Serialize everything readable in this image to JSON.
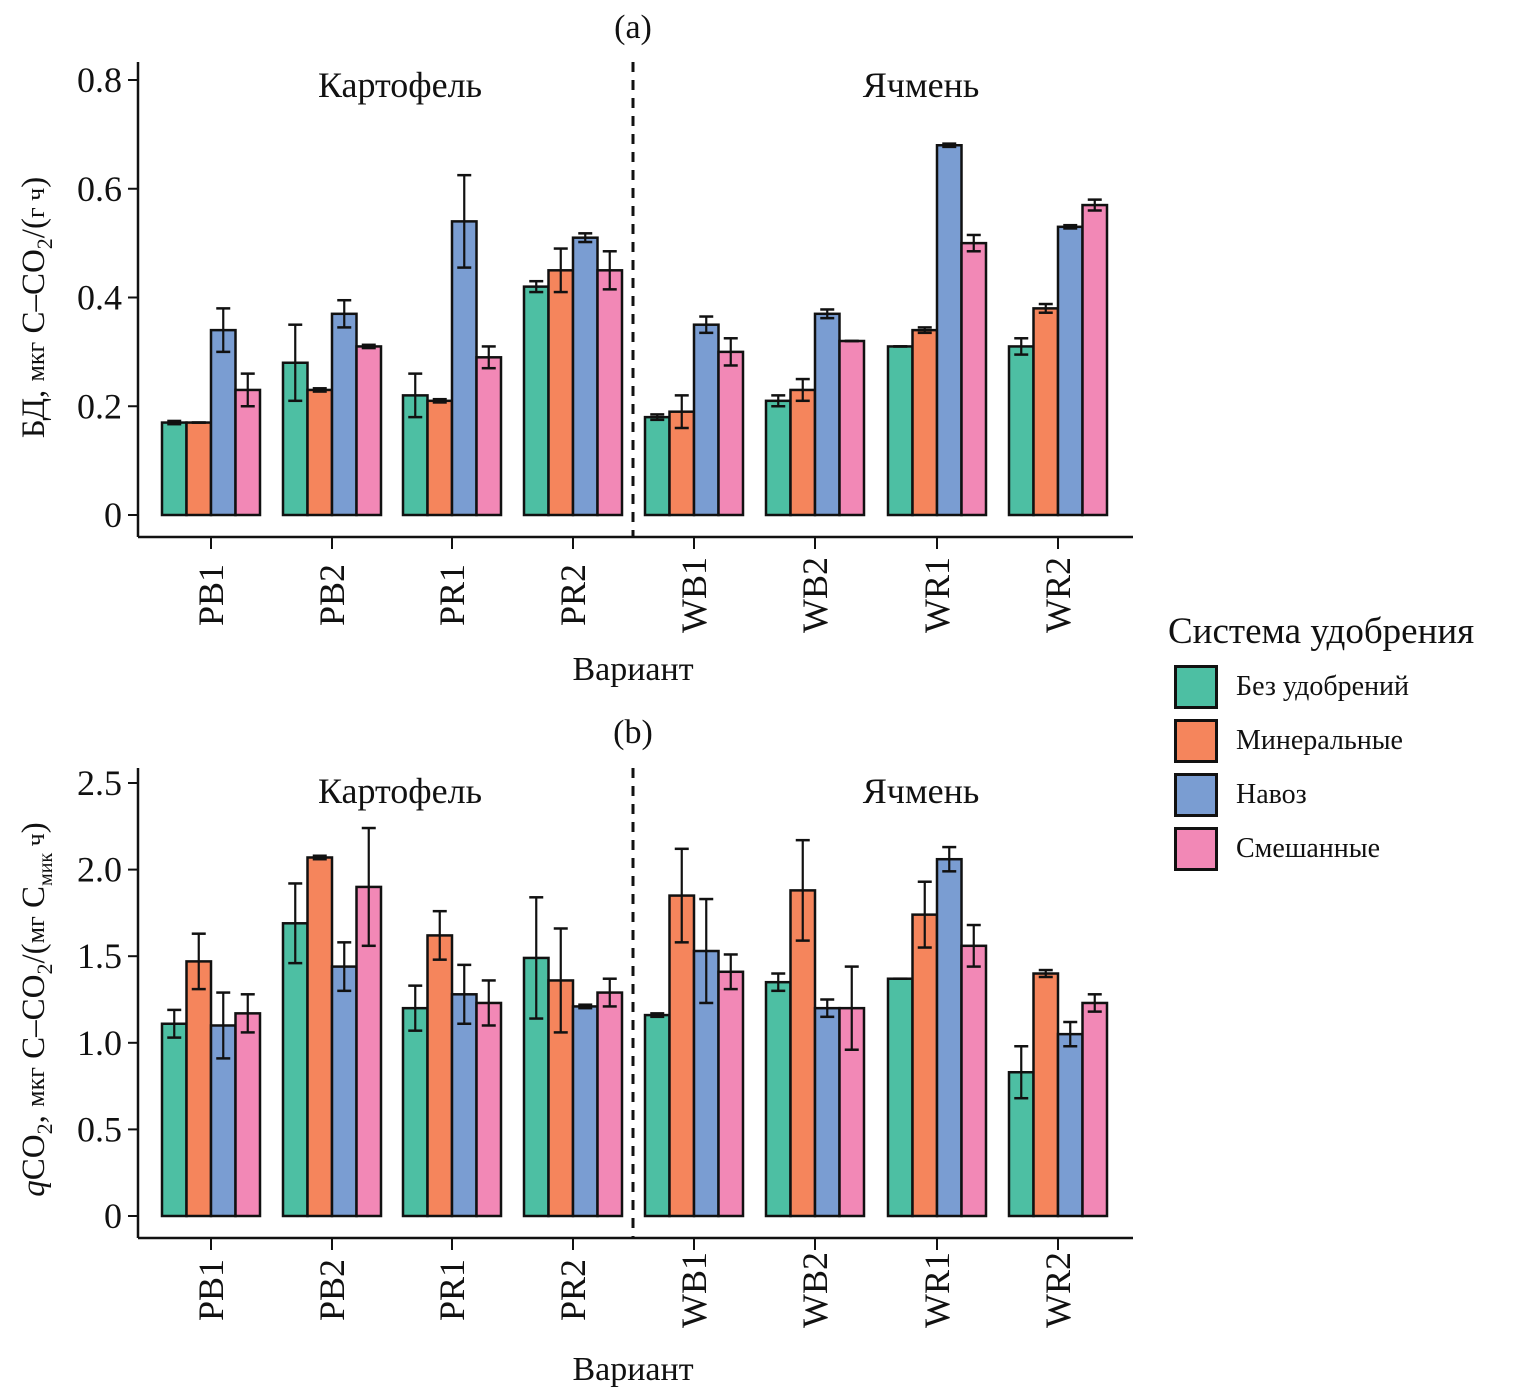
{
  "legend": {
    "title": "Система удобрения",
    "items": [
      {
        "label": "Без удобрений",
        "color": "#4dbfa3"
      },
      {
        "label": "Минеральные",
        "color": "#f5855c"
      },
      {
        "label": "Навоз",
        "color": "#7a9dd2"
      },
      {
        "label": "Смешанные",
        "color": "#f288b6"
      }
    ]
  },
  "chart_data": [
    {
      "type": "bar",
      "panel_label": "(a)",
      "title": "(a)",
      "xlabel": "Вариант",
      "ylabel": "БД, мкг C–CO₂/(г ч)",
      "ylim": [
        0,
        0.8
      ],
      "yticks": [
        0,
        0.2,
        0.4,
        0.6,
        0.8
      ],
      "ytick_labels": [
        "0",
        "0.2",
        "0.4",
        "0.6",
        "0.8"
      ],
      "categories": [
        "PB1",
        "PB2",
        "PR1",
        "PR2",
        "WB1",
        "WB2",
        "WR1",
        "WR2"
      ],
      "group_labels": [
        {
          "label": "Картофель",
          "categories": [
            "PB1",
            "PB2",
            "PR1",
            "PR2"
          ]
        },
        {
          "label": "Ячмень",
          "categories": [
            "WB1",
            "WB2",
            "WR1",
            "WR2"
          ]
        }
      ],
      "divider_after": "PR2",
      "series": [
        {
          "name": "Без удобрений",
          "values": [
            0.17,
            0.28,
            0.22,
            0.42,
            0.18,
            0.21,
            0.31,
            0.31
          ],
          "errors": [
            0.003,
            0.07,
            0.04,
            0.01,
            0.005,
            0.01,
            0.0,
            0.015
          ]
        },
        {
          "name": "Минеральные",
          "values": [
            0.17,
            0.23,
            0.21,
            0.45,
            0.19,
            0.23,
            0.34,
            0.38
          ],
          "errors": [
            0.0,
            0.003,
            0.003,
            0.04,
            0.03,
            0.02,
            0.005,
            0.008
          ]
        },
        {
          "name": "Навоз",
          "values": [
            0.34,
            0.37,
            0.54,
            0.51,
            0.35,
            0.37,
            0.68,
            0.53
          ],
          "errors": [
            0.04,
            0.025,
            0.085,
            0.008,
            0.015,
            0.008,
            0.003,
            0.003
          ]
        },
        {
          "name": "Смешанные",
          "values": [
            0.23,
            0.31,
            0.29,
            0.45,
            0.3,
            0.32,
            0.5,
            0.57
          ],
          "errors": [
            0.03,
            0.003,
            0.02,
            0.035,
            0.025,
            0.0,
            0.015,
            0.01
          ]
        }
      ],
      "grid": false,
      "legend_position": "right"
    },
    {
      "type": "bar",
      "panel_label": "(b)",
      "title": "(b)",
      "xlabel": "Вариант",
      "ylabel": "qCO₂, мкг C–CO₂/(мг Cмик ч)",
      "ylim": [
        0,
        2.5
      ],
      "yticks": [
        0,
        0.5,
        1.0,
        1.5,
        2.0,
        2.5
      ],
      "ytick_labels": [
        "0",
        "0.5",
        "1.0",
        "1.5",
        "2.0",
        "2.5"
      ],
      "categories": [
        "PB1",
        "PB2",
        "PR1",
        "PR2",
        "WB1",
        "WB2",
        "WR1",
        "WR2"
      ],
      "group_labels": [
        {
          "label": "Картофель",
          "categories": [
            "PB1",
            "PB2",
            "PR1",
            "PR2"
          ]
        },
        {
          "label": "Ячмень",
          "categories": [
            "WB1",
            "WB2",
            "WR1",
            "WR2"
          ]
        }
      ],
      "divider_after": "PR2",
      "series": [
        {
          "name": "Без удобрений",
          "values": [
            1.11,
            1.69,
            1.2,
            1.49,
            1.16,
            1.35,
            1.37,
            0.83
          ],
          "errors": [
            0.08,
            0.23,
            0.13,
            0.35,
            0.01,
            0.05,
            0.0,
            0.15
          ]
        },
        {
          "name": "Минеральные",
          "values": [
            1.47,
            2.07,
            1.62,
            1.36,
            1.85,
            1.88,
            1.74,
            1.4
          ],
          "errors": [
            0.16,
            0.01,
            0.14,
            0.3,
            0.27,
            0.29,
            0.19,
            0.02
          ]
        },
        {
          "name": "Навоз",
          "values": [
            1.1,
            1.44,
            1.28,
            1.21,
            1.53,
            1.2,
            2.06,
            1.05
          ],
          "errors": [
            0.19,
            0.14,
            0.17,
            0.01,
            0.3,
            0.05,
            0.07,
            0.07
          ]
        },
        {
          "name": "Смешанные",
          "values": [
            1.17,
            1.9,
            1.23,
            1.29,
            1.41,
            1.2,
            1.56,
            1.23
          ],
          "errors": [
            0.11,
            0.34,
            0.13,
            0.08,
            0.1,
            0.24,
            0.12,
            0.05
          ]
        }
      ],
      "grid": false,
      "legend_position": "right"
    }
  ]
}
